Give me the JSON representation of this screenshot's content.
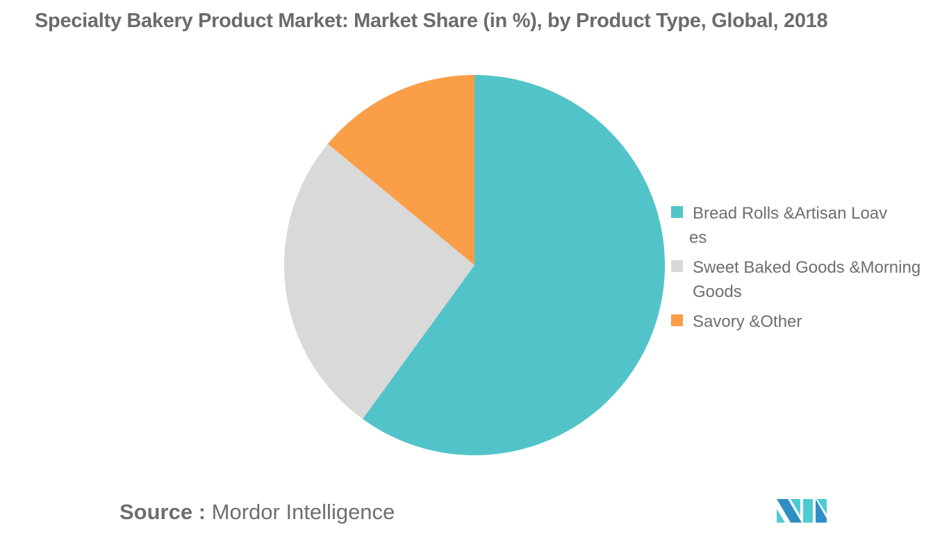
{
  "title": "Specialty Bakery Product Market: Market Share (in %), by Product Type, Global, 2018",
  "legend": [
    {
      "label": "Bread Rolls &Artisan Loaves",
      "line1": "Bread Rolls &Artisan Loav",
      "line2": "es",
      "color": "#52c4c9"
    },
    {
      "label": "Sweet Baked Goods &Morning Goods",
      "line1": "Sweet Baked Goods &Morning",
      "line2": "Goods",
      "color": "#d9d9d9"
    },
    {
      "label": "Savory &Other",
      "line1": "Savory &Other",
      "line2": "",
      "color": "#fa9e48"
    }
  ],
  "source": {
    "prefix": "Source :",
    "name": "Mordor Intelligence"
  },
  "logo": {
    "icon": "mordor-intelligence-logo-icon",
    "colors": [
      "#2e8fc4",
      "#4ecbd0"
    ]
  },
  "chart_data": {
    "type": "pie",
    "title": "Specialty Bakery Product Market: Market Share (in %), by Product Type, Global, 2018",
    "categories": [
      "Bread Rolls &Artisan Loaves",
      "Sweet Baked Goods &Morning Goods",
      "Savory &Other"
    ],
    "values": [
      60,
      26,
      14
    ],
    "colors": [
      "#52c4c9",
      "#d9d9d9",
      "#fa9e48"
    ],
    "start_angle": "12 o'clock, clockwise",
    "legend_position": "right",
    "data_labels": false
  }
}
